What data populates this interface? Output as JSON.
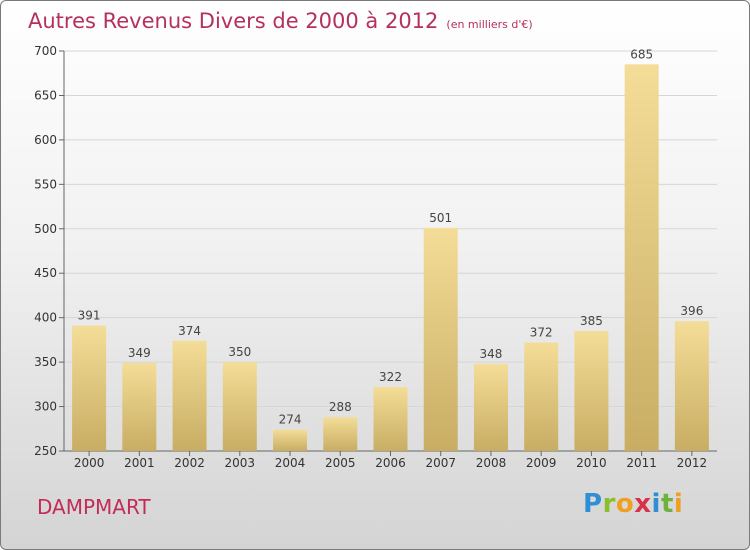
{
  "title": "Autres Revenus Divers de 2000 à 2012",
  "subtitle": "(en milliers d'€)",
  "commune": "DAMPMART",
  "logo": {
    "text": "Proxiti",
    "colors": [
      "#2f8fd6",
      "#8bbf2c",
      "#f0a020",
      "#d8324a",
      "#2f8fd6",
      "#6cb33e",
      "#f0a020"
    ]
  },
  "colors": {
    "title": "#b5305f",
    "commune": "#c42c58",
    "bar_light": "#f4dd98",
    "bar_dark": "#c8ad63"
  },
  "chart_data": {
    "type": "bar",
    "title": "Autres Revenus Divers de 2000 à 2012",
    "subtitle": "(en milliers d'€)",
    "xlabel": "",
    "ylabel": "",
    "categories": [
      "2000",
      "2001",
      "2002",
      "2003",
      "2004",
      "2005",
      "2006",
      "2007",
      "2008",
      "2009",
      "2010",
      "2011",
      "2012"
    ],
    "values": [
      391,
      349,
      374,
      350,
      274,
      288,
      322,
      501,
      348,
      372,
      385,
      685,
      396
    ],
    "ylim": [
      250,
      700
    ],
    "yticks": [
      250,
      300,
      350,
      400,
      450,
      500,
      550,
      600,
      650,
      700
    ],
    "grid": true,
    "legend": "none"
  }
}
